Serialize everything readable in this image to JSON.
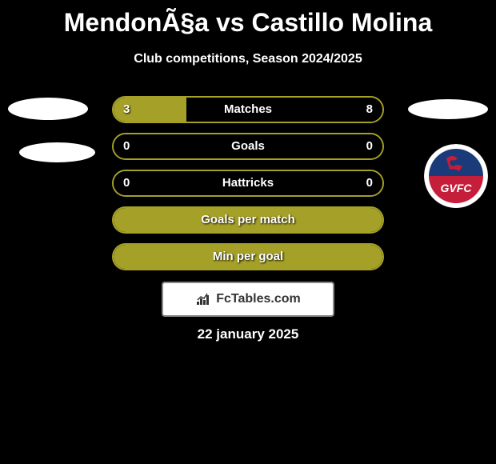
{
  "title": "MendonÃ§a vs Castillo Molina",
  "subtitle": "Club competitions, Season 2024/2025",
  "date": "22 january 2025",
  "logo_text": "FcTables.com",
  "colors": {
    "background": "#000000",
    "bar_fill": "#a5a027",
    "bar_border": "#a5a027",
    "text": "#ffffff",
    "avatar": "#ffffff",
    "logo_bg": "#ffffff",
    "logo_border": "#888888"
  },
  "club_badge": {
    "bg_top": "#1a3a7a",
    "bg_bottom": "#c41e3a",
    "text": "GVFC"
  },
  "bars": [
    {
      "label": "Matches",
      "left_value": "3",
      "right_value": "8",
      "fill_percent": 27,
      "fill_side": "left"
    },
    {
      "label": "Goals",
      "left_value": "0",
      "right_value": "0",
      "fill_percent": 0,
      "fill_side": "left"
    },
    {
      "label": "Hattricks",
      "left_value": "0",
      "right_value": "0",
      "fill_percent": 0,
      "fill_side": "left"
    },
    {
      "label": "Goals per match",
      "left_value": "",
      "right_value": "",
      "fill_percent": 100,
      "fill_side": "left"
    },
    {
      "label": "Min per goal",
      "left_value": "",
      "right_value": "",
      "fill_percent": 100,
      "fill_side": "left"
    }
  ]
}
